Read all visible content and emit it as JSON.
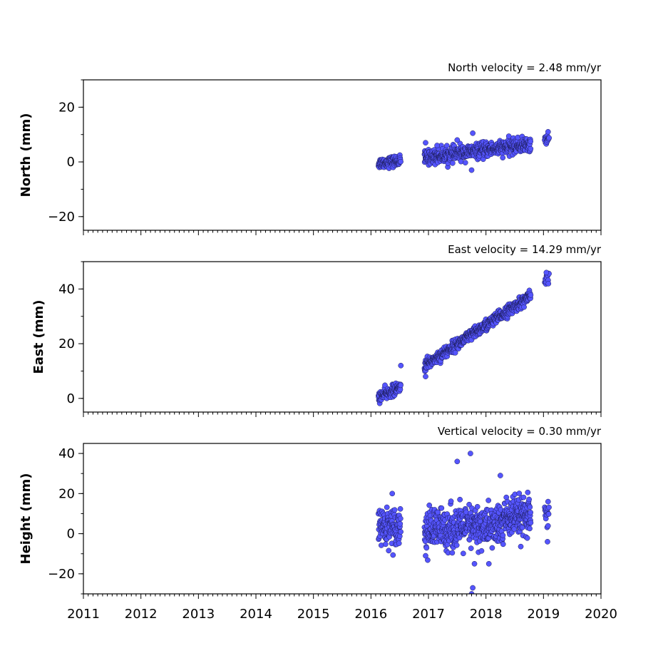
{
  "chart_data": [
    {
      "type": "scatter",
      "title": "North velocity = 2.48 mm/yr",
      "ylabel": "North (mm)",
      "xlim": [
        2011,
        2020
      ],
      "ylim": [
        -25,
        30
      ],
      "yticks": [
        -20,
        0,
        20
      ],
      "xticks": [
        2011,
        2012,
        2013,
        2014,
        2015,
        2016,
        2017,
        2018,
        2019,
        2020
      ],
      "show_xtick_labels": false,
      "marker_color": "#5555ff",
      "segments": [
        {
          "start": 2016.13,
          "end": 2016.52,
          "y_start": -0.5,
          "y_end": 0.5,
          "scatter": 1.2,
          "count": 110
        },
        {
          "start": 2016.93,
          "end": 2018.78,
          "y_start": 1.5,
          "y_end": 6.5,
          "scatter": 1.6,
          "count": 560
        },
        {
          "start": 2019.02,
          "end": 2019.1,
          "y_start": 7.5,
          "y_end": 8.5,
          "scatter": 1.2,
          "count": 15
        }
      ],
      "outliers": [
        {
          "x": 2016.95,
          "y": 7
        },
        {
          "x": 2017.15,
          "y": 6
        },
        {
          "x": 2017.5,
          "y": 8
        },
        {
          "x": 2017.77,
          "y": 10.5
        },
        {
          "x": 2017.75,
          "y": -3
        },
        {
          "x": 2019.08,
          "y": 11
        }
      ]
    },
    {
      "type": "scatter",
      "title": "East velocity = 14.29 mm/yr",
      "ylabel": "East (mm)",
      "xlim": [
        2011,
        2020
      ],
      "ylim": [
        -5,
        50
      ],
      "yticks": [
        0,
        20,
        40
      ],
      "xticks": [
        2011,
        2012,
        2013,
        2014,
        2015,
        2016,
        2017,
        2018,
        2019,
        2020
      ],
      "show_xtick_labels": false,
      "marker_color": "#5555ff",
      "segments": [
        {
          "start": 2016.13,
          "end": 2016.52,
          "y_start": 0.5,
          "y_end": 4,
          "scatter": 1.3,
          "count": 110
        },
        {
          "start": 2016.93,
          "end": 2018.78,
          "y_start": 12,
          "y_end": 37.5,
          "scatter": 1.3,
          "count": 560
        },
        {
          "start": 2019.02,
          "end": 2019.1,
          "y_start": 42,
          "y_end": 45,
          "scatter": 1.2,
          "count": 15
        }
      ],
      "outliers": [
        {
          "x": 2016.52,
          "y": 12
        },
        {
          "x": 2016.95,
          "y": 8
        },
        {
          "x": 2019.05,
          "y": 46
        }
      ]
    },
    {
      "type": "scatter",
      "title": "Vertical velocity = 0.30 mm/yr",
      "ylabel": "Height (mm)",
      "xlim": [
        2011,
        2020
      ],
      "ylim": [
        -30,
        45
      ],
      "yticks": [
        -20,
        0,
        20,
        40
      ],
      "xticks": [
        2011,
        2012,
        2013,
        2014,
        2015,
        2016,
        2017,
        2018,
        2019,
        2020
      ],
      "show_xtick_labels": true,
      "marker_color": "#5555ff",
      "segments": [
        {
          "start": 2016.13,
          "end": 2016.52,
          "y_start": 4,
          "y_end": 4,
          "scatter": 5.5,
          "count": 120
        },
        {
          "start": 2016.93,
          "end": 2018.3,
          "y_start": 2,
          "y_end": 4,
          "scatter": 6.5,
          "count": 420
        },
        {
          "start": 2018.3,
          "end": 2018.78,
          "y_start": 8,
          "y_end": 8,
          "scatter": 6,
          "count": 170
        },
        {
          "start": 2019.02,
          "end": 2019.1,
          "y_start": 8,
          "y_end": 8,
          "scatter": 4,
          "count": 15
        }
      ],
      "outliers": [
        {
          "x": 2017.73,
          "y": 40
        },
        {
          "x": 2017.5,
          "y": 36
        },
        {
          "x": 2017.77,
          "y": -27
        },
        {
          "x": 2017.75,
          "y": -30
        },
        {
          "x": 2017.8,
          "y": -15
        },
        {
          "x": 2018.25,
          "y": 29
        },
        {
          "x": 2016.37,
          "y": 20
        },
        {
          "x": 2018.05,
          "y": -15
        },
        {
          "x": 2016.95,
          "y": -11
        },
        {
          "x": 2019.08,
          "y": 16
        },
        {
          "x": 2019.07,
          "y": -4
        }
      ]
    }
  ]
}
